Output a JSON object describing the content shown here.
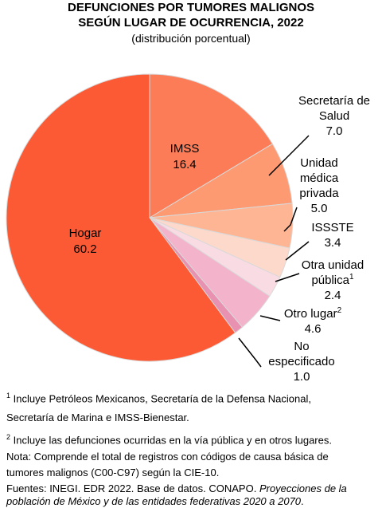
{
  "chart_data": {
    "type": "pie",
    "title": "DEFUNCIONES POR TUMORES MALIGNOS",
    "title_line2": "SEGÚN LUGAR DE OCURRENCIA, 2022",
    "subtitle": "(distribución porcentual)",
    "slices": [
      {
        "label_lines": [
          "IMSS"
        ],
        "value": 16.4,
        "value_label": "16.4",
        "color": "#fb7c57"
      },
      {
        "label_lines": [
          "Secretaría de",
          "Salud"
        ],
        "value": 7.0,
        "value_label": "7.0",
        "color": "#fd9a72"
      },
      {
        "label_lines": [
          "Unidad",
          "médica",
          "privada"
        ],
        "value": 5.0,
        "value_label": "5.0",
        "color": "#fdb594"
      },
      {
        "label_lines": [
          "ISSSTE"
        ],
        "value": 3.4,
        "value_label": "3.4",
        "color": "#fdd9cc"
      },
      {
        "label_lines": [
          "Otra unidad",
          "pública"
        ],
        "sup": "1",
        "value": 2.4,
        "value_label": "2.4",
        "color": "#f9dbe4"
      },
      {
        "label_lines": [
          "Otro lugar"
        ],
        "sup": "2",
        "value": 4.6,
        "value_label": "4.6",
        "color": "#f2b3cb"
      },
      {
        "label_lines": [
          "No",
          "especificado"
        ],
        "value": 1.0,
        "value_label": "1.0",
        "color": "#e891b0"
      },
      {
        "label_lines": [
          "Hogar"
        ],
        "value": 60.2,
        "value_label": "60.2",
        "color": "#fb5a34"
      }
    ]
  },
  "notes": {
    "n1_sup": "1",
    "n1": "Incluye Petróleos Mexicanos, Secretaría de la Defensa Nacional,",
    "n1b": "Secretaría de Marina e IMSS-Bienestar.",
    "n2_sup": "2",
    "n2": "Incluye las defunciones ocurridas en la vía pública y en otros lugares.",
    "nota_a": "Nota: Comprende el total de registros con códigos de causa básica de",
    "nota_b": "tumores malignos (C00-C97) según la CIE-10.",
    "fuentes_a": "Fuentes: INEGI. EDR 2022. Base de datos. CONAPO. ",
    "fuentes_italic": "Proyecciones de la",
    "fuentes_italic2": "población de México y de las entidades federativas 2020 a 2070",
    "fuentes_end": "."
  }
}
